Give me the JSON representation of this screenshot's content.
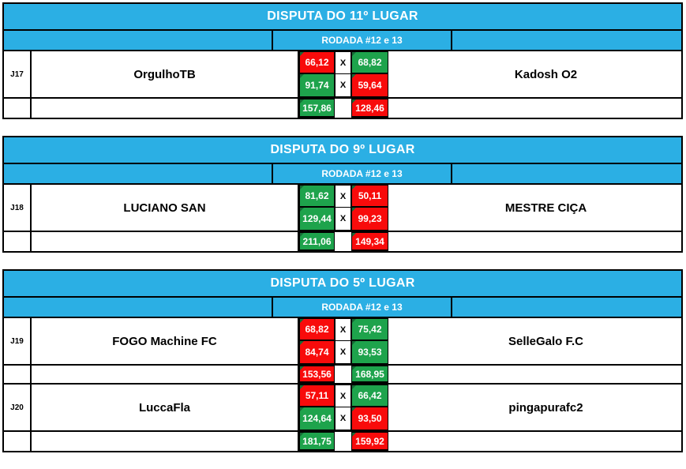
{
  "colors": {
    "header_cyan": "#2BAFE4",
    "win_green": "#1EA34C",
    "loss_red": "#F80B0B",
    "indicator_dark_green": "#156B35",
    "border_black": "#000000",
    "score_text_white": "#FFFFFF"
  },
  "tables": [
    {
      "title": "DISPUTA DO 11º LUGAR",
      "round_label": "RODADA #12 e 13",
      "matches": [
        {
          "code": "J17",
          "home_team": "OrgulhoTB",
          "away_team": "Kadosh O2",
          "rounds": [
            {
              "home": "66,12",
              "home_result": "loss",
              "separator": "X",
              "away": "68,82",
              "away_result": "win"
            },
            {
              "home": "91,74",
              "home_result": "win",
              "separator": "X",
              "away": "59,64",
              "away_result": "loss"
            }
          ],
          "totals": {
            "home": "157,86",
            "home_result": "win",
            "away": "128,46",
            "away_result": "loss"
          }
        }
      ]
    },
    {
      "title": "DISPUTA DO 9º LUGAR",
      "round_label": "RODADA #12 e 13",
      "matches": [
        {
          "code": "J18",
          "home_team": "LUCIANO SAN",
          "away_team": "MESTRE CIÇA",
          "rounds": [
            {
              "home": "81,62",
              "home_result": "win",
              "separator": "X",
              "away": "50,11",
              "away_result": "loss"
            },
            {
              "home": "129,44",
              "home_result": "win",
              "separator": "X",
              "away": "99,23",
              "away_result": "loss"
            }
          ],
          "totals": {
            "home": "211,06",
            "home_result": "win",
            "away": "149,34",
            "away_result": "loss"
          }
        }
      ]
    },
    {
      "title": "DISPUTA DO 5º LUGAR",
      "round_label": "RODADA #12 e 13",
      "matches": [
        {
          "code": "J19",
          "home_team": "FOGO Machine FC",
          "away_team": "SelleGalo F.C",
          "rounds": [
            {
              "home": "68,82",
              "home_result": "loss",
              "separator": "X",
              "away": "75,42",
              "away_result": "win"
            },
            {
              "home": "84,74",
              "home_result": "loss",
              "separator": "X",
              "away": "93,53",
              "away_result": "win"
            }
          ],
          "totals": {
            "home": "153,56",
            "home_result": "loss",
            "away": "168,95",
            "away_result": "win"
          }
        },
        {
          "code": "J20",
          "home_team": "LuccaFla",
          "away_team": "pingapurafc2",
          "rounds": [
            {
              "home": "57,11",
              "home_result": "loss",
              "separator": "X",
              "away": "66,42",
              "away_result": "win"
            },
            {
              "home": "124,64",
              "home_result": "win",
              "separator": "X",
              "away": "93,50",
              "away_result": "loss"
            }
          ],
          "totals": {
            "home": "181,75",
            "home_result": "win",
            "away": "159,92",
            "away_result": "loss"
          }
        }
      ]
    }
  ]
}
